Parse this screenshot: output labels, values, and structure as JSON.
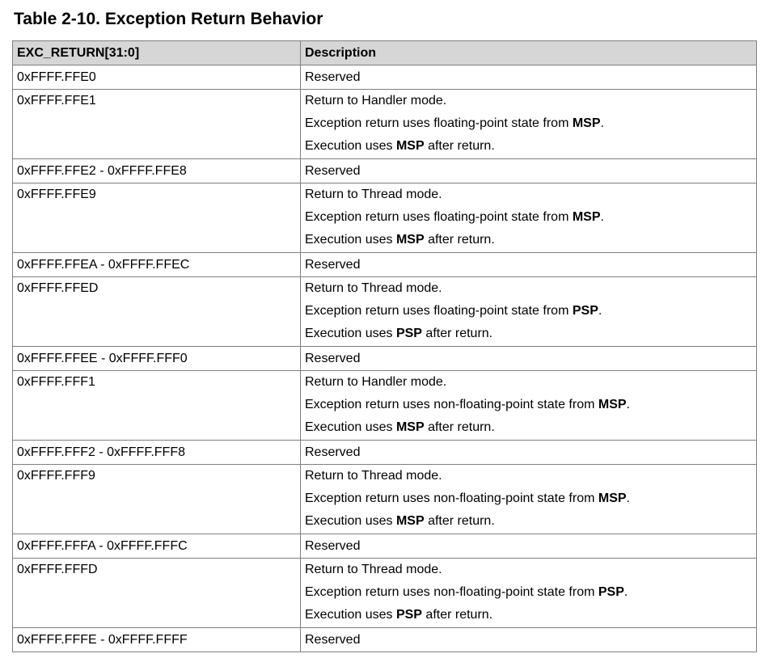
{
  "title": "Table 2-10. Exception Return Behavior",
  "headers": {
    "col1": "EXC_RETURN[31:0]",
    "col2": "Description"
  },
  "rows": [
    {
      "value": "0xFFFF.FFE0",
      "lines": [
        [
          "Reserved"
        ]
      ]
    },
    {
      "value": "0xFFFF.FFE1",
      "lines": [
        [
          "Return to Handler mode."
        ],
        [
          "Exception return uses floating-point state from ",
          "MSP",
          "."
        ],
        [
          "Execution uses ",
          "MSP",
          " after return."
        ]
      ]
    },
    {
      "value": "0xFFFF.FFE2 - 0xFFFF.FFE8",
      "lines": [
        [
          "Reserved"
        ]
      ]
    },
    {
      "value": "0xFFFF.FFE9",
      "lines": [
        [
          "Return to Thread mode."
        ],
        [
          "Exception return uses floating-point state from ",
          "MSP",
          "."
        ],
        [
          "Execution uses ",
          "MSP",
          " after return."
        ]
      ]
    },
    {
      "value": "0xFFFF.FFEA - 0xFFFF.FFEC",
      "lines": [
        [
          "Reserved"
        ]
      ]
    },
    {
      "value": "0xFFFF.FFED",
      "lines": [
        [
          "Return to Thread mode."
        ],
        [
          "Exception return uses floating-point state from ",
          "PSP",
          "."
        ],
        [
          "Execution uses ",
          "PSP",
          " after return."
        ]
      ]
    },
    {
      "value": "0xFFFF.FFEE - 0xFFFF.FFF0",
      "lines": [
        [
          "Reserved"
        ]
      ]
    },
    {
      "value": "0xFFFF.FFF1",
      "lines": [
        [
          "Return to Handler mode."
        ],
        [
          "Exception return uses non-floating-point state from ",
          "MSP",
          "."
        ],
        [
          "Execution uses ",
          "MSP",
          " after return."
        ]
      ]
    },
    {
      "value": "0xFFFF.FFF2 - 0xFFFF.FFF8",
      "lines": [
        [
          "Reserved"
        ]
      ]
    },
    {
      "value": "0xFFFF.FFF9",
      "lines": [
        [
          "Return to Thread mode."
        ],
        [
          "Exception return uses non-floating-point state from ",
          "MSP",
          "."
        ],
        [
          "Execution uses ",
          "MSP",
          " after return."
        ]
      ]
    },
    {
      "value": "0xFFFF.FFFA - 0xFFFF.FFFC",
      "lines": [
        [
          "Reserved"
        ]
      ]
    },
    {
      "value": "0xFFFF.FFFD",
      "lines": [
        [
          "Return to Thread mode."
        ],
        [
          "Exception return uses non-floating-point state from ",
          "PSP",
          "."
        ],
        [
          "Execution uses ",
          "PSP",
          " after return."
        ]
      ]
    },
    {
      "value": "0xFFFF.FFFE - 0xFFFF.FFFF",
      "lines": [
        [
          "Reserved"
        ]
      ]
    }
  ]
}
